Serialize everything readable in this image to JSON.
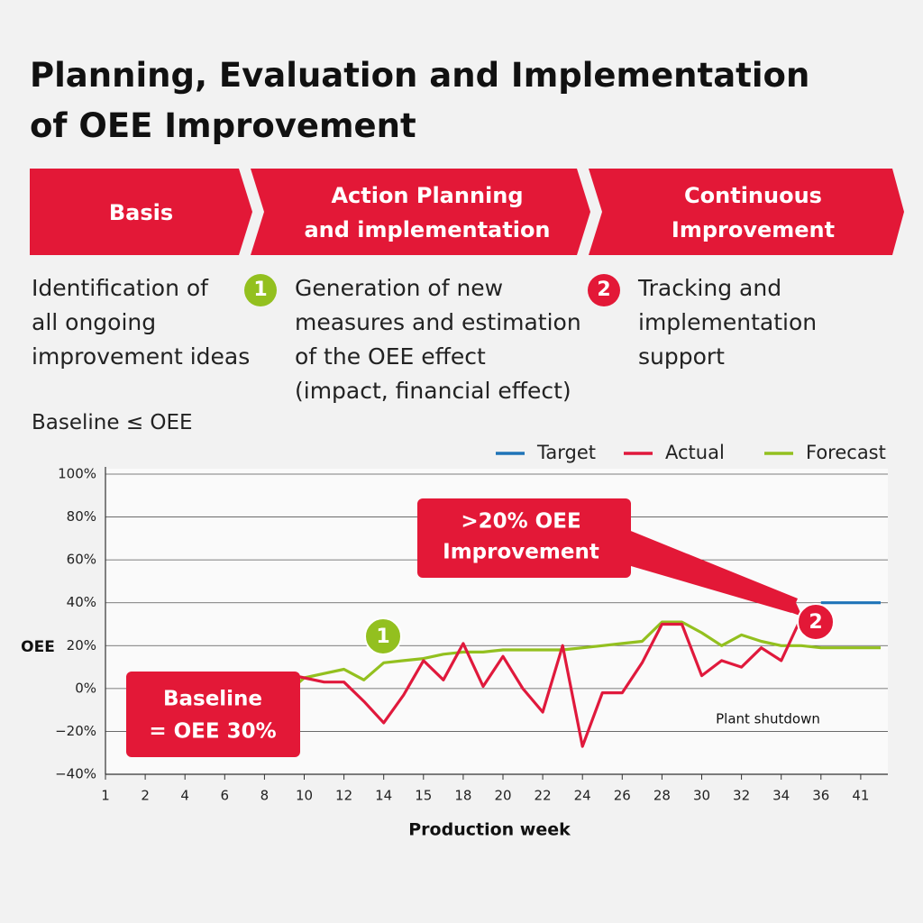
{
  "title": [
    "Planning, Evaluation and Implementation",
    "of OEE Improvement"
  ],
  "steps": [
    {
      "title": [
        "Basis"
      ],
      "description": [
        "Identification of",
        "all ongoing",
        "improvement ideas"
      ]
    },
    {
      "title": [
        "Action Planning",
        "and implementation"
      ],
      "badge": "1",
      "description": [
        "Generation of new",
        "measures and estimation",
        "of the OEE effect",
        "(impact, financial effect)"
      ]
    },
    {
      "title": [
        "Continuous",
        "Improvement"
      ],
      "badge": "2",
      "description": [
        "Tracking and",
        "implementation",
        "support"
      ]
    }
  ],
  "subtitle": "Baseline ≤ OEE",
  "chart_data": {
    "type": "line",
    "categories": [
      "1",
      null,
      "2",
      null,
      "4",
      null,
      "6",
      null,
      "8",
      null,
      "10",
      null,
      "12",
      null,
      "14",
      null,
      "15",
      null,
      "18",
      null,
      "20",
      null,
      "22",
      null,
      "24",
      null,
      "26",
      null,
      "28",
      null,
      "30",
      null,
      "32",
      null,
      "34",
      null,
      "36",
      null,
      "41",
      null
    ],
    "series": [
      {
        "name": "Target",
        "color": "#1f74b8",
        "values": [
          null,
          null,
          null,
          null,
          null,
          null,
          null,
          null,
          null,
          null,
          null,
          null,
          null,
          null,
          null,
          null,
          null,
          null,
          null,
          null,
          null,
          null,
          null,
          null,
          null,
          null,
          null,
          null,
          null,
          null,
          null,
          null,
          null,
          null,
          null,
          null,
          40,
          40,
          40,
          40
        ]
      },
      {
        "name": "Actual",
        "color": "#e0193c",
        "values": [
          null,
          null,
          null,
          null,
          null,
          null,
          null,
          null,
          null,
          7,
          5,
          3,
          3,
          -6,
          -16,
          -3,
          13,
          4,
          21,
          1,
          15,
          0,
          -11,
          20,
          -27,
          -2,
          -2,
          12,
          30,
          30,
          6,
          13,
          10,
          19,
          13,
          33,
          null,
          null,
          null,
          null
        ]
      },
      {
        "name": "Forecast",
        "color": "#93c01f",
        "values": [
          null,
          null,
          null,
          null,
          null,
          null,
          null,
          null,
          null,
          -3,
          5,
          7,
          9,
          4,
          12,
          13,
          14,
          16,
          17,
          17,
          18,
          18,
          18,
          18,
          19,
          20,
          21,
          22,
          31,
          31,
          26,
          20,
          25,
          22,
          20,
          20,
          19,
          19,
          19,
          19
        ]
      }
    ],
    "ylim": [
      -40,
      100
    ],
    "yticks": [
      {
        "value": -40,
        "label": "−40%"
      },
      {
        "value": -20,
        "label": "−20%"
      },
      {
        "value": 0,
        "label": "0%"
      },
      {
        "value": 20,
        "label": "20%"
      },
      {
        "value": 40,
        "label": "40%"
      },
      {
        "value": 60,
        "label": "60%"
      },
      {
        "value": 80,
        "label": "80%"
      },
      {
        "value": 100,
        "label": "100%"
      }
    ],
    "grid": true,
    "legend": "top-right",
    "y_label": "OEE",
    "x_label": "Production week",
    "annotations": [
      {
        "text": [
          "Baseline",
          "= OEE 30%"
        ]
      },
      {
        "text": [
          ">20% OEE",
          "Improvement"
        ]
      },
      {
        "text": [
          "Plant shutdown"
        ]
      }
    ],
    "markers": [
      "1",
      "2"
    ]
  }
}
